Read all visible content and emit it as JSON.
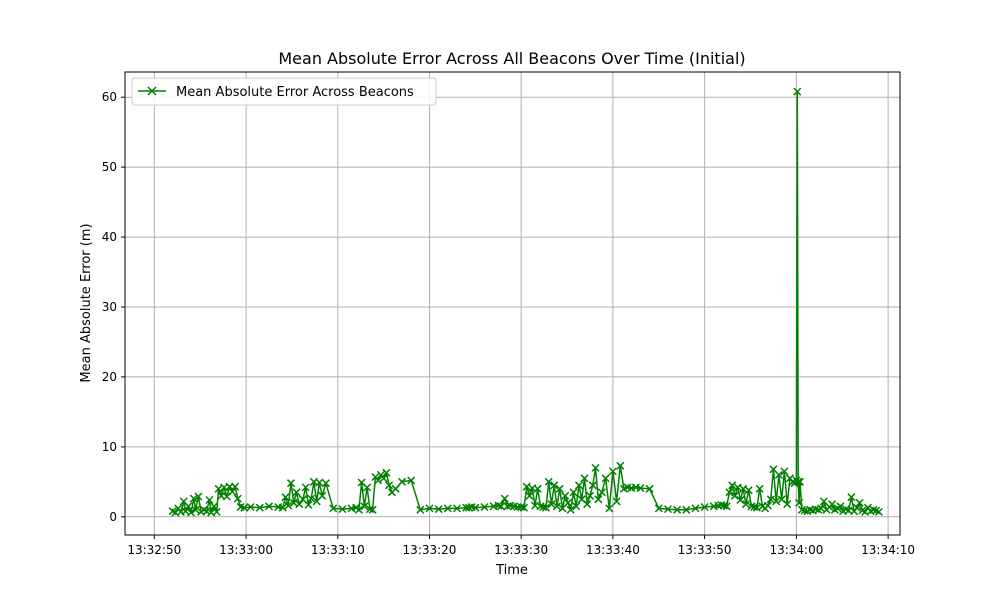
{
  "chart_data": {
    "type": "line",
    "title": "Mean Absolute Error Across All Beacons Over Time (Initial)",
    "xlabel": "Time",
    "ylabel": "Mean Absolute Error (m)",
    "x_tick_labels": [
      "13:32:50",
      "13:33:00",
      "13:33:10",
      "13:33:20",
      "13:33:30",
      "13:33:40",
      "13:33:50",
      "13:34:00",
      "13:34:10"
    ],
    "x_tick_seconds": [
      0,
      10,
      20,
      30,
      40,
      50,
      60,
      70,
      80
    ],
    "xlim_seconds": [
      -3.2,
      81.3
    ],
    "y_ticks": [
      0,
      10,
      20,
      30,
      40,
      50,
      60
    ],
    "ylim": [
      -2.6,
      63.6
    ],
    "grid": true,
    "legend_position": "upper-left",
    "color": "#008000",
    "marker": "x",
    "series": [
      {
        "name": "Mean Absolute Error Across Beacons",
        "x_seconds": [
          2.0,
          2.3,
          2.6,
          2.9,
          3.2,
          3.4,
          3.7,
          4.0,
          4.3,
          4.5,
          4.8,
          5.1,
          5.4,
          5.7,
          6.0,
          6.2,
          6.5,
          6.8,
          7.0,
          7.3,
          7.6,
          7.9,
          8.2,
          8.5,
          8.8,
          9.1,
          9.4,
          9.8,
          10.5,
          11.5,
          12.5,
          13.5,
          14.0,
          14.3,
          14.6,
          14.9,
          15.2,
          15.5,
          15.8,
          16.2,
          16.5,
          16.8,
          17.1,
          17.4,
          17.7,
          18.0,
          18.3,
          18.7,
          19.5,
          20.5,
          21.5,
          22.0,
          22.3,
          22.6,
          22.9,
          23.2,
          23.5,
          23.8,
          24.1,
          24.4,
          24.7,
          25.0,
          25.3,
          25.6,
          25.9,
          26.3,
          27.0,
          28.0,
          29.0,
          30.0,
          31.0,
          32.0,
          33.0,
          34.0,
          34.3,
          34.6,
          35.0,
          36.0,
          37.0,
          37.5,
          37.8,
          38.2,
          38.5,
          38.8,
          39.2,
          39.6,
          40.0,
          40.3,
          40.6,
          40.9,
          41.2,
          41.5,
          41.8,
          42.1,
          42.4,
          42.7,
          43.0,
          43.3,
          43.6,
          43.9,
          44.2,
          44.5,
          44.8,
          45.1,
          45.4,
          45.7,
          46.0,
          46.3,
          46.6,
          46.9,
          47.2,
          47.5,
          47.8,
          48.1,
          48.4,
          48.8,
          49.2,
          49.6,
          50.0,
          50.4,
          50.8,
          51.2,
          51.6,
          52.0,
          52.5,
          53.0,
          54.0,
          55.0,
          56.0,
          57.0,
          58.0,
          59.0,
          60.0,
          61.0,
          61.5,
          61.8,
          62.1,
          62.4,
          62.7,
          63.0,
          63.3,
          63.6,
          63.9,
          64.2,
          64.5,
          64.8,
          65.1,
          65.4,
          65.7,
          66.0,
          66.3,
          66.6,
          66.9,
          67.2,
          67.5,
          67.8,
          68.1,
          68.4,
          68.7,
          69.0,
          69.3,
          69.6,
          69.8,
          70.0,
          70.1,
          70.2,
          70.3,
          70.4,
          70.6,
          70.9,
          71.2,
          71.5,
          71.8,
          72.1,
          72.4,
          72.7,
          73.0,
          73.3,
          73.6,
          73.9,
          74.2,
          74.5,
          74.8,
          75.1,
          75.4,
          75.7,
          76.0,
          76.3,
          76.6,
          76.9,
          77.2,
          77.5,
          77.8,
          78.1,
          78.4,
          78.7,
          79.0
        ],
        "values": [
          0.8,
          0.6,
          1.2,
          0.7,
          2.2,
          0.8,
          1.5,
          0.6,
          2.6,
          1.0,
          2.9,
          0.7,
          1.0,
          0.8,
          2.4,
          0.6,
          1.5,
          0.7,
          4.0,
          3.0,
          4.2,
          2.9,
          4.3,
          3.6,
          4.3,
          2.6,
          1.4,
          1.3,
          1.4,
          1.3,
          1.5,
          1.4,
          1.3,
          2.8,
          1.6,
          4.8,
          2.0,
          3.5,
          1.8,
          2.5,
          4.2,
          1.7,
          2.6,
          5.0,
          2.2,
          4.9,
          3.0,
          4.8,
          1.2,
          1.1,
          1.2,
          1.3,
          1.0,
          4.9,
          1.5,
          4.2,
          1.1,
          1.0,
          5.7,
          5.2,
          6.0,
          5.5,
          6.3,
          4.5,
          3.5,
          4.0,
          5.0,
          5.2,
          1.0,
          1.2,
          1.1,
          1.2,
          1.2,
          1.3,
          1.3,
          1.4,
          1.3,
          1.4,
          1.5,
          1.6,
          1.5,
          2.6,
          1.5,
          1.6,
          1.5,
          1.4,
          1.4,
          1.3,
          4.3,
          3.0,
          4.1,
          1.6,
          4.0,
          1.5,
          1.4,
          1.3,
          5.0,
          1.8,
          4.5,
          1.5,
          4.0,
          1.2,
          3.0,
          2.0,
          1.0,
          3.5,
          1.5,
          4.5,
          2.5,
          5.5,
          1.8,
          3.0,
          4.5,
          7.0,
          2.5,
          3.5,
          5.5,
          1.2,
          6.5,
          2.2,
          7.3,
          4.0,
          4.2,
          4.1,
          4.2,
          4.1,
          4.0,
          1.2,
          1.1,
          1.0,
          1.0,
          1.2,
          1.4,
          1.5,
          1.6,
          1.7,
          1.6,
          1.5,
          3.5,
          4.5,
          3.0,
          4.2,
          2.4,
          4.0,
          1.8,
          3.8,
          1.5,
          1.4,
          1.3,
          4.0,
          1.5,
          1.2,
          1.6,
          2.5,
          6.8,
          2.2,
          6.0,
          2.5,
          6.5,
          1.8,
          5.5,
          5.0,
          4.8,
          5.2,
          60.8,
          5.0,
          2.0,
          5.0,
          1.0,
          0.9,
          0.8,
          1.0,
          0.9,
          1.1,
          1.0,
          1.2,
          2.2,
          1.0,
          1.4,
          1.8,
          1.0,
          1.2,
          1.5,
          0.8,
          1.1,
          0.9,
          2.8,
          0.8,
          1.3,
          2.0,
          0.9,
          0.7,
          1.3,
          0.8,
          1.0,
          0.9,
          0.7
        ]
      }
    ]
  }
}
